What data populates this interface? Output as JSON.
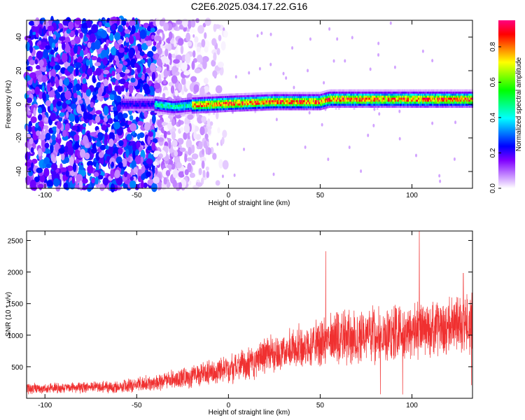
{
  "title": "C2E6.2025.034.17.22.G16",
  "chart_data": [
    {
      "type": "heatmap",
      "xlabel": "Height of straight line (km)",
      "ylabel": "Frequency (Hz)",
      "xlim": [
        -110,
        133
      ],
      "ylim": [
        -50,
        50
      ],
      "xticks": [
        -100,
        -50,
        0,
        50,
        100
      ],
      "yticks": [
        -40,
        -20,
        0,
        20,
        40
      ],
      "colorbar": {
        "label": "Normalized spectral amplitude",
        "range": [
          0.0,
          0.95
        ],
        "ticks": [
          0.0,
          0.2,
          0.4,
          0.6,
          0.8
        ],
        "colors": [
          "#ffffff",
          "#c080ff",
          "#8000ff",
          "#0000ff",
          "#0080ff",
          "#00ffff",
          "#00ff80",
          "#00ff00",
          "#80ff00",
          "#ffff00",
          "#ff8000",
          "#ff0000",
          "#ff0080"
        ]
      },
      "ridge": [
        {
          "x": -40,
          "y": 0.0
        },
        {
          "x": -30,
          "y": -1.5
        },
        {
          "x": -20,
          "y": -0.5
        },
        {
          "x": 0,
          "y": 0.5
        },
        {
          "x": 25,
          "y": 1.5
        },
        {
          "x": 50,
          "y": 1.5
        },
        {
          "x": 55,
          "y": 3.0
        },
        {
          "x": 100,
          "y": 3.0
        },
        {
          "x": 130,
          "y": 3.0
        }
      ],
      "noise_region": {
        "x_from": -110,
        "x_to": -20,
        "y_from": -50,
        "y_to": 50
      }
    },
    {
      "type": "line",
      "xlabel": "Height of straight line (km)",
      "ylabel": "SNR (10 * v/v)",
      "xlim": [
        -110,
        133
      ],
      "ylim": [
        0,
        2650
      ],
      "xticks": [
        -100,
        -50,
        0,
        50,
        100
      ],
      "yticks": [
        500,
        1000,
        1500,
        2000,
        2500
      ],
      "color": "#f03030",
      "envelope": [
        {
          "x": -110,
          "mean": 150,
          "spread": 80
        },
        {
          "x": -60,
          "mean": 180,
          "spread": 90
        },
        {
          "x": -30,
          "mean": 300,
          "spread": 150
        },
        {
          "x": 0,
          "mean": 450,
          "spread": 220
        },
        {
          "x": 30,
          "mean": 750,
          "spread": 300
        },
        {
          "x": 60,
          "mean": 950,
          "spread": 400
        },
        {
          "x": 100,
          "mean": 1050,
          "spread": 450
        },
        {
          "x": 133,
          "mean": 1200,
          "spread": 450
        }
      ],
      "peaks": [
        {
          "x": 53,
          "y": 2330
        },
        {
          "x": 104,
          "y": 2650
        },
        {
          "x": 128,
          "y": 1980
        }
      ]
    }
  ]
}
